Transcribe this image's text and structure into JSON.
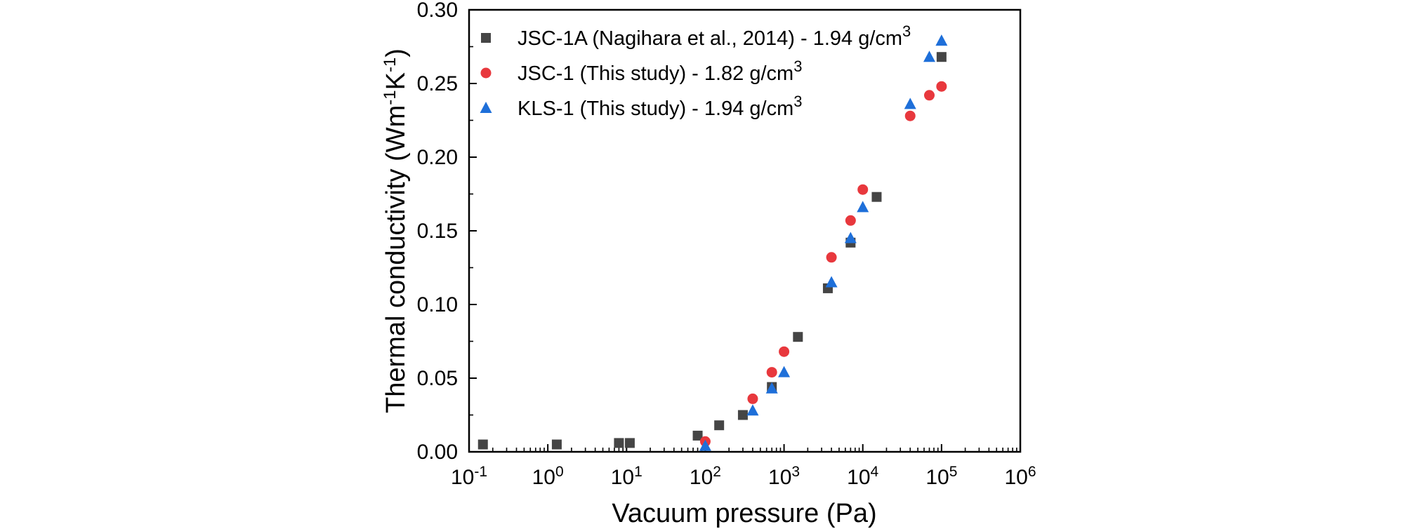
{
  "chart_data": {
    "type": "scatter",
    "xscale": "log",
    "title": "",
    "xlabel": "Vacuum pressure (Pa)",
    "ylabel": {
      "base": "Thermal conductivity (Wm",
      "exp1": "-1",
      "mid": "K",
      "exp2": "-1",
      "end": ")"
    },
    "xlim": [
      0.1,
      1000000
    ],
    "ylim": [
      0,
      0.3
    ],
    "x_ticks": [
      {
        "base": "10",
        "exp": "-1",
        "value": 0.1
      },
      {
        "base": "10",
        "exp": "0",
        "value": 1
      },
      {
        "base": "10",
        "exp": "1",
        "value": 10
      },
      {
        "base": "10",
        "exp": "2",
        "value": 100
      },
      {
        "base": "10",
        "exp": "3",
        "value": 1000
      },
      {
        "base": "10",
        "exp": "4",
        "value": 10000
      },
      {
        "base": "10",
        "exp": "5",
        "value": 100000
      },
      {
        "base": "10",
        "exp": "6",
        "value": 1000000
      }
    ],
    "y_ticks": [
      {
        "label": "0.00",
        "value": 0.0
      },
      {
        "label": "0.05",
        "value": 0.05
      },
      {
        "label": "0.10",
        "value": 0.1
      },
      {
        "label": "0.15",
        "value": 0.15
      },
      {
        "label": "0.20",
        "value": 0.2
      },
      {
        "label": "0.25",
        "value": 0.25
      },
      {
        "label": "0.30",
        "value": 0.3
      }
    ],
    "legend_position": "top-left",
    "series": [
      {
        "name": "JSC-1A (Nagihara et al., 2014) - 1.94 g/cm",
        "name_sup": "3",
        "marker": "square",
        "color": "#454545",
        "points": [
          {
            "x": 0.15,
            "y": 0.005
          },
          {
            "x": 1.3,
            "y": 0.005
          },
          {
            "x": 8,
            "y": 0.006
          },
          {
            "x": 11,
            "y": 0.006
          },
          {
            "x": 80,
            "y": 0.011
          },
          {
            "x": 150,
            "y": 0.018
          },
          {
            "x": 300,
            "y": 0.025
          },
          {
            "x": 700,
            "y": 0.044
          },
          {
            "x": 1500,
            "y": 0.078
          },
          {
            "x": 3600,
            "y": 0.111
          },
          {
            "x": 7000,
            "y": 0.142
          },
          {
            "x": 15000,
            "y": 0.173
          },
          {
            "x": 100000,
            "y": 0.268
          }
        ]
      },
      {
        "name": "JSC-1   (This study) - 1.82 g/cm",
        "name_sup": "3",
        "marker": "circle",
        "color": "#e8383d",
        "points": [
          {
            "x": 100,
            "y": 0.007
          },
          {
            "x": 400,
            "y": 0.036
          },
          {
            "x": 700,
            "y": 0.054
          },
          {
            "x": 1000,
            "y": 0.068
          },
          {
            "x": 4000,
            "y": 0.132
          },
          {
            "x": 7000,
            "y": 0.157
          },
          {
            "x": 10000,
            "y": 0.178
          },
          {
            "x": 40000,
            "y": 0.228
          },
          {
            "x": 70000,
            "y": 0.242
          },
          {
            "x": 100000,
            "y": 0.248
          }
        ]
      },
      {
        "name": "KLS-1   (This study) - 1.94 g/cm",
        "name_sup": "3",
        "marker": "triangle",
        "color": "#1e6fd9",
        "points": [
          {
            "x": 100,
            "y": 0.004
          },
          {
            "x": 400,
            "y": 0.028
          },
          {
            "x": 700,
            "y": 0.043
          },
          {
            "x": 1000,
            "y": 0.054
          },
          {
            "x": 4000,
            "y": 0.115
          },
          {
            "x": 7000,
            "y": 0.145
          },
          {
            "x": 10000,
            "y": 0.166
          },
          {
            "x": 40000,
            "y": 0.236
          },
          {
            "x": 70000,
            "y": 0.268
          },
          {
            "x": 100000,
            "y": 0.279
          }
        ]
      }
    ]
  }
}
